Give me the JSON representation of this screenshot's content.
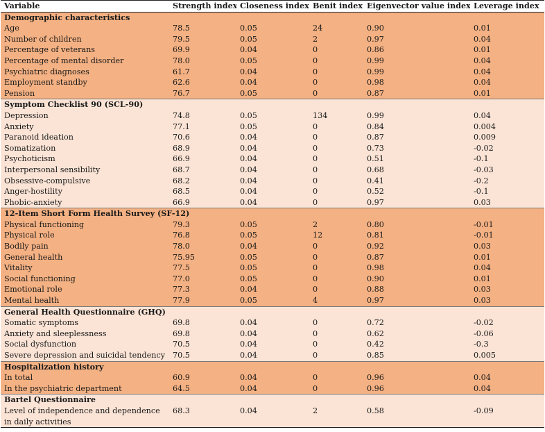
{
  "headers": [
    "Variable",
    "Strength index",
    "Closeness index",
    "Benit index",
    "Eigenvector value index",
    "Leverage index"
  ],
  "sections": [
    {
      "title": "Demographic characteristics",
      "shade": "dark",
      "rows": [
        [
          "Age",
          "78.5",
          "0.05",
          "24",
          "0.90",
          "0.01"
        ],
        [
          "Number of children",
          "79.5",
          "0.05",
          "2",
          "0.97",
          "0.04"
        ],
        [
          "Percentage of veterans",
          "69.9",
          "0.04",
          "0",
          "0.86",
          "0.01"
        ],
        [
          "Percentage of mental disorder",
          "78.0",
          "0.05",
          "0",
          "0.99",
          "0.04"
        ],
        [
          "Psychiatric diagnoses",
          "61.7",
          "0.04",
          "0",
          "0.99",
          "0.04"
        ],
        [
          "Employment standby",
          "62.6",
          "0.04",
          "0",
          "0.98",
          "0.04"
        ],
        [
          "Pension",
          "76.7",
          "0.05",
          "0",
          "0.87",
          "0.01"
        ]
      ]
    },
    {
      "title": "Symptom Checklist 90 (SCL-90)",
      "shade": "light",
      "rows": [
        [
          "Depression",
          "74.8",
          "0.05",
          "134",
          "0.99",
          "0.04"
        ],
        [
          "Anxiety",
          "77.1",
          "0.05",
          "0",
          "0.84",
          "0.004"
        ],
        [
          "Paranoid ideation",
          "70.6",
          "0.04",
          "0",
          "0.87",
          "0.009"
        ],
        [
          "Somatization",
          "68.9",
          "0.04",
          "0",
          "0.73",
          "-0.02"
        ],
        [
          "Psychoticism",
          "66.9",
          "0.04",
          "0",
          "0.51",
          "-0.1"
        ],
        [
          "Interpersonal sensibility",
          "68.7",
          "0.04",
          "0",
          "0.68",
          "-0.03"
        ],
        [
          "Obsessive-compulsive",
          "68.2",
          "0.04",
          "0",
          "0.41",
          "-0.2"
        ],
        [
          "Anger-hostility",
          "68.5",
          "0.04",
          "0",
          "0.52",
          "-0.1"
        ],
        [
          "Phobic-anxiety",
          "66.9",
          "0.04",
          "0",
          "0.97",
          "0.03"
        ]
      ]
    },
    {
      "title": "12-Item Short Form Health Survey (SF-12)",
      "shade": "dark",
      "rows": [
        [
          "Physical functioning",
          "79.3",
          "0.05",
          "2",
          "0.80",
          "-0.01"
        ],
        [
          "Physical role",
          "76.8",
          "0.05",
          "12",
          "0.81",
          "-0.01"
        ],
        [
          "Bodily pain",
          "78.0",
          "0.04",
          "0",
          "0.92",
          "0.03"
        ],
        [
          "General health",
          "75.95",
          "0.05",
          "0",
          "0.87",
          "0.01"
        ],
        [
          "Vitality",
          "77.5",
          "0.05",
          "0",
          "0.98",
          "0.04"
        ],
        [
          "Social functioning",
          "77.0",
          "0.05",
          "0",
          "0.90",
          "0.01"
        ],
        [
          "Emotional role",
          "77.3",
          "0.04",
          "0",
          "0.88",
          "0.03"
        ],
        [
          "Mental health",
          "77.9",
          "0.05",
          "4",
          "0.97",
          "0.03"
        ]
      ]
    },
    {
      "title": "General Health Questionnaire (GHQ)",
      "shade": "light",
      "rows": [
        [
          "Somatic symptoms",
          "69.8",
          "0.04",
          "0",
          "0.72",
          "-0.02"
        ],
        [
          "Anxiety and sleeplessness",
          "69.8",
          "0.04",
          "0",
          "0.62",
          "-0.06"
        ],
        [
          "Social dysfunction",
          "70.5",
          "0.04",
          "0",
          "0.42",
          "-0.3"
        ],
        [
          "Severe depression and suicidal tendency",
          "70.5",
          "0.04",
          "0",
          "0.85",
          "0.005"
        ]
      ]
    },
    {
      "title": "Hospitalization history",
      "shade": "dark",
      "rows": [
        [
          "In total",
          "60.9",
          "0.04",
          "0",
          "0.96",
          "0.04"
        ],
        [
          "In the psychiatric department",
          "64.5",
          "0.04",
          "0",
          "0.96",
          "0.04"
        ]
      ]
    },
    {
      "title": "Bartel Questionnaire",
      "shade": "light",
      "rows": [
        [
          "Level of independence and dependence in daily activities",
          "68.3",
          "0.04",
          "2",
          "0.58",
          "-0.09"
        ]
      ]
    }
  ]
}
